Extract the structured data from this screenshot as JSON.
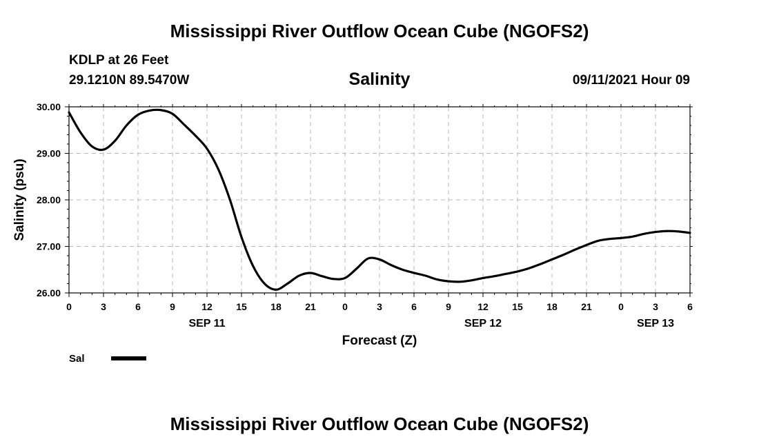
{
  "header": {
    "title": "Mississippi River Outflow Ocean Cube (NGOFS2)",
    "station": "KDLP at 26 Feet",
    "coords": "29.1210N  89.5470W",
    "variable": "Salinity",
    "datetime": "09/11/2021 Hour 09"
  },
  "footer": {
    "title": "Mississippi River Outflow Ocean Cube (NGOFS2)"
  },
  "colors": {
    "line": "#000000",
    "grid": "#b8b8b8",
    "frame": "#000000"
  },
  "chart_data": {
    "type": "line",
    "title": "Salinity",
    "xlabel": "Forecast (Z)",
    "ylabel": "Salinity (psu)",
    "xlim": [
      0,
      54
    ],
    "ylim": [
      26.0,
      30.0
    ],
    "grid": true,
    "x_ticks": [
      0,
      3,
      6,
      9,
      12,
      15,
      18,
      21,
      24,
      27,
      30,
      33,
      36,
      39,
      42,
      45,
      48,
      51,
      54
    ],
    "x_tick_labels": [
      "0",
      "3",
      "6",
      "9",
      "12",
      "15",
      "18",
      "21",
      "0",
      "3",
      "6",
      "9",
      "12",
      "15",
      "18",
      "21",
      "0",
      "3",
      "6"
    ],
    "date_labels": [
      {
        "x": 12,
        "label": "SEP 11"
      },
      {
        "x": 36,
        "label": "SEP 12"
      },
      {
        "x": 51,
        "label": "SEP 13"
      }
    ],
    "y_ticks": [
      26.0,
      27.0,
      28.0,
      29.0,
      30.0
    ],
    "y_tick_labels": [
      "26.00",
      "27.00",
      "28.00",
      "29.00",
      "30.00"
    ],
    "legend": {
      "position": "bottom-left"
    },
    "series": [
      {
        "name": "Sal",
        "x": [
          0,
          1,
          2,
          3,
          4,
          5,
          6,
          7,
          8,
          9,
          10,
          11,
          12,
          13,
          14,
          15,
          16,
          17,
          18,
          19,
          20,
          21,
          22,
          23,
          24,
          25,
          26,
          27,
          28,
          29,
          30,
          31,
          32,
          33,
          34,
          35,
          36,
          37,
          38,
          39,
          40,
          41,
          42,
          43,
          44,
          45,
          46,
          47,
          48,
          49,
          50,
          51,
          52,
          53,
          54
        ],
        "y": [
          29.88,
          29.45,
          29.15,
          29.08,
          29.27,
          29.6,
          29.83,
          29.92,
          29.93,
          29.85,
          29.62,
          29.38,
          29.1,
          28.65,
          28.0,
          27.2,
          26.58,
          26.2,
          26.07,
          26.2,
          26.37,
          26.43,
          26.36,
          26.3,
          26.32,
          26.52,
          26.74,
          26.72,
          26.6,
          26.5,
          26.43,
          26.37,
          26.29,
          26.25,
          26.24,
          26.27,
          26.32,
          26.36,
          26.41,
          26.46,
          26.53,
          26.62,
          26.72,
          26.82,
          26.93,
          27.03,
          27.12,
          27.16,
          27.18,
          27.21,
          27.27,
          27.31,
          27.33,
          27.32,
          27.29
        ]
      }
    ]
  }
}
